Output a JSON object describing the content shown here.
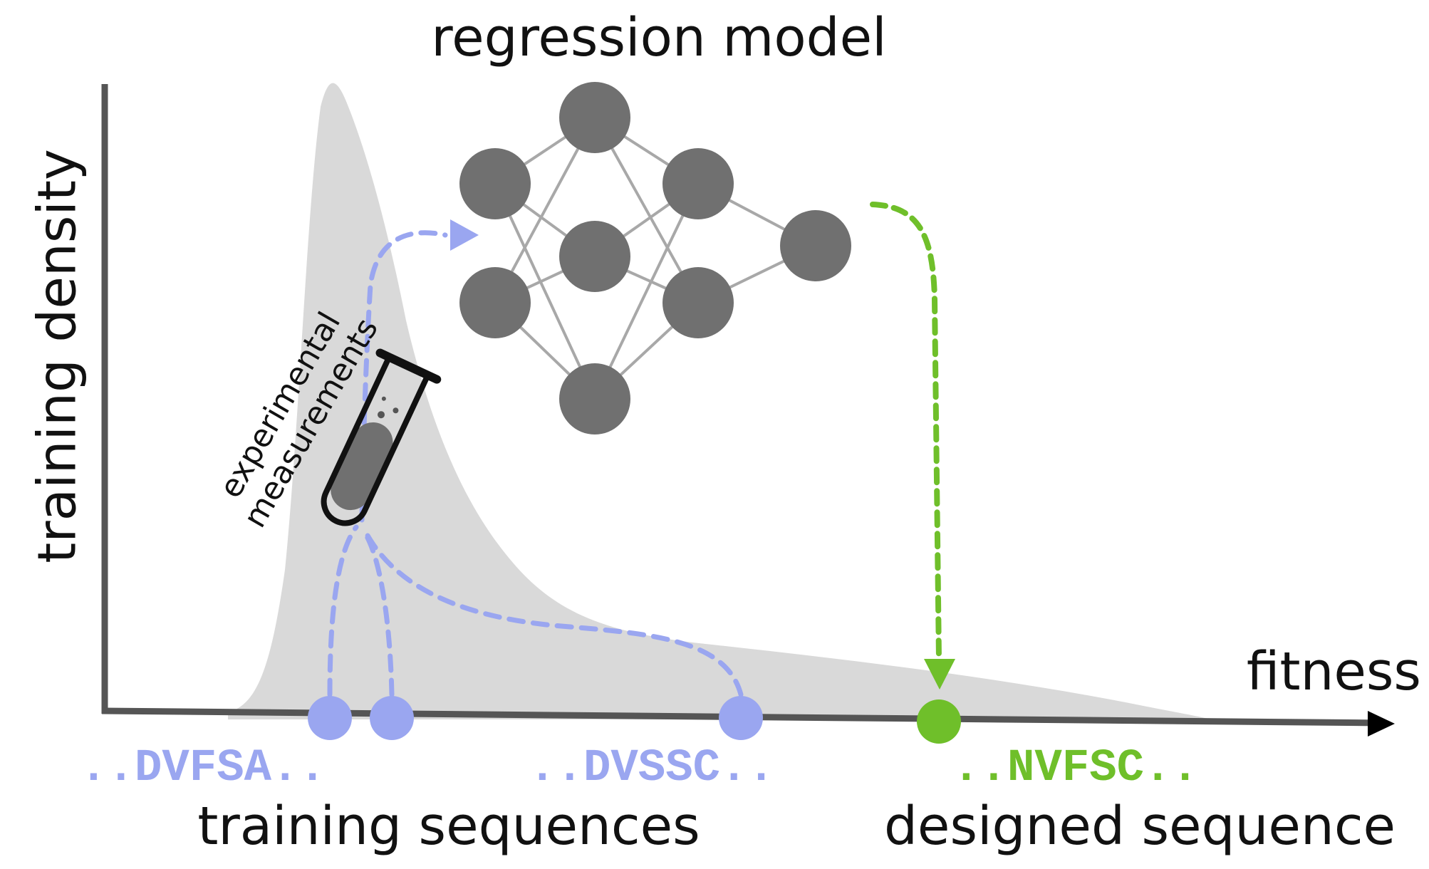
{
  "title": "regression model",
  "y_axis_label": "training density",
  "x_axis_label": "fitness",
  "annotation": {
    "line1": "experimental",
    "line2": "measurements"
  },
  "sequences": {
    "training_1": "..DVFSA..",
    "training_2": "..DVSSC..",
    "designed": "..NVFSC.."
  },
  "captions": {
    "training": "training sequences",
    "designed": "designed sequence"
  },
  "colors": {
    "training": "#9aa6f0",
    "designed": "#6fbf2a",
    "network_node": "#707070",
    "axis": "#555555",
    "density": "#d9d9d9"
  },
  "icons": {
    "test_tube": "test-tube-icon",
    "network": "neural-network-icon"
  }
}
